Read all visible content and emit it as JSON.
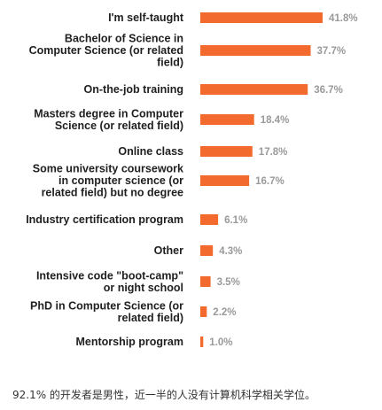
{
  "chart_data": {
    "type": "bar",
    "orientation": "horizontal",
    "bar_color": "#f26a2e",
    "categories": [
      [
        "I'm self-taught"
      ],
      [
        "Bachelor of Science in",
        "Computer Science (or related",
        "field)"
      ],
      [
        "On-the-job training"
      ],
      [
        "Masters degree in Computer",
        "Science (or related field)"
      ],
      [
        "Online class"
      ],
      [
        "Some university coursework",
        "in computer science (or",
        "related field) but no degree"
      ],
      [
        "Industry certification program"
      ],
      [
        "Other"
      ],
      [
        "Intensive code \"boot-camp\"",
        "or night school"
      ],
      [
        "PhD in Computer Science (or",
        "related field)"
      ],
      [
        "Mentorship program"
      ]
    ],
    "values": [
      41.8,
      37.7,
      36.7,
      18.4,
      17.8,
      16.7,
      6.1,
      4.3,
      3.5,
      2.2,
      1.0
    ],
    "value_labels": [
      "41.8%",
      "37.7%",
      "36.7%",
      "18.4%",
      "17.8%",
      "16.7%",
      "6.1%",
      "4.3%",
      "3.5%",
      "2.2%",
      "1.0%"
    ],
    "xlim": [
      0,
      41.8
    ],
    "grid": false,
    "legend": "none"
  },
  "footer_text": "92.1% 的开发者是男性，近一半的人没有计算机科学相关学位。"
}
